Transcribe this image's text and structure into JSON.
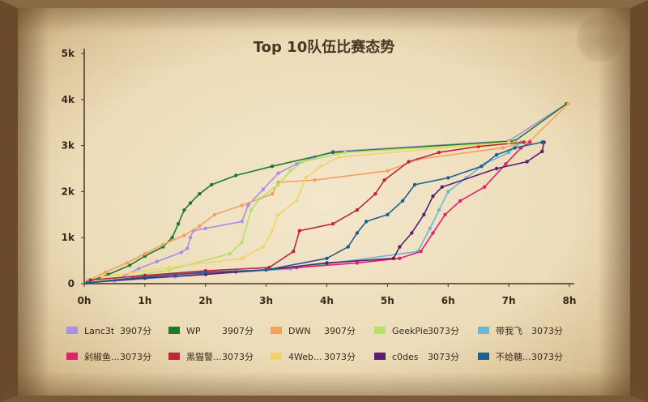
{
  "chart_data": {
    "type": "line",
    "title": "Top 10队伍比赛态势",
    "xlabel": "",
    "ylabel": "",
    "xlim": [
      0,
      8
    ],
    "ylim": [
      0,
      5000
    ],
    "x_ticks": [
      "0h",
      "1h",
      "2h",
      "3h",
      "4h",
      "5h",
      "6h",
      "7h",
      "8h"
    ],
    "y_ticks": [
      "0",
      "1k",
      "2k",
      "3k",
      "4k",
      "5k"
    ],
    "legend_position": "bottom",
    "series": [
      {
        "name": "Lanc3t",
        "score": "3907分",
        "color": "#a98ee8",
        "points": [
          [
            0.55,
            100
          ],
          [
            0.9,
            330
          ],
          [
            1.2,
            480
          ],
          [
            1.6,
            680
          ],
          [
            1.7,
            770
          ],
          [
            1.75,
            1000
          ],
          [
            1.8,
            1150
          ],
          [
            2.0,
            1200
          ],
          [
            2.6,
            1350
          ],
          [
            2.7,
            1700
          ],
          [
            2.95,
            2050
          ],
          [
            3.2,
            2400
          ],
          [
            3.5,
            2600
          ],
          [
            3.8,
            2750
          ],
          [
            4.1,
            2870
          ],
          [
            7.0,
            3100
          ],
          [
            7.95,
            3907
          ]
        ]
      },
      {
        "name": "WP",
        "score": "3907分",
        "color": "#1e7a2a",
        "points": [
          [
            0.05,
            30
          ],
          [
            0.4,
            200
          ],
          [
            0.75,
            400
          ],
          [
            1.0,
            600
          ],
          [
            1.3,
            800
          ],
          [
            1.45,
            1000
          ],
          [
            1.55,
            1300
          ],
          [
            1.65,
            1600
          ],
          [
            1.75,
            1750
          ],
          [
            1.9,
            1950
          ],
          [
            2.1,
            2150
          ],
          [
            2.5,
            2350
          ],
          [
            3.1,
            2550
          ],
          [
            4.1,
            2850
          ],
          [
            7.1,
            3100
          ],
          [
            7.95,
            3907
          ]
        ]
      },
      {
        "name": "DWN",
        "score": "3907分",
        "color": "#f3a25a",
        "points": [
          [
            0.05,
            60
          ],
          [
            0.35,
            250
          ],
          [
            0.7,
            450
          ],
          [
            1.0,
            650
          ],
          [
            1.3,
            850
          ],
          [
            1.65,
            1050
          ],
          [
            1.9,
            1250
          ],
          [
            2.15,
            1500
          ],
          [
            2.6,
            1700
          ],
          [
            3.1,
            1950
          ],
          [
            3.2,
            2200
          ],
          [
            3.8,
            2250
          ],
          [
            5.0,
            2450
          ],
          [
            5.5,
            2700
          ],
          [
            6.9,
            2950
          ],
          [
            7.35,
            3100
          ],
          [
            7.98,
            3907
          ]
        ]
      },
      {
        "name": "GeekPie",
        "score": "3073分",
        "color": "#b5e06a",
        "points": [
          [
            0.5,
            100
          ],
          [
            1.4,
            300
          ],
          [
            2.4,
            650
          ],
          [
            2.6,
            900
          ],
          [
            2.75,
            1600
          ],
          [
            2.9,
            1850
          ],
          [
            3.2,
            2150
          ],
          [
            3.4,
            2450
          ],
          [
            3.6,
            2650
          ],
          [
            4.3,
            2850
          ],
          [
            7.1,
            3073
          ]
        ]
      },
      {
        "name": "带我飞",
        "score": "3073分",
        "color": "#6bb7d4",
        "points": [
          [
            0.5,
            60
          ],
          [
            1.5,
            150
          ],
          [
            2.5,
            250
          ],
          [
            3.4,
            320
          ],
          [
            5.5,
            700
          ],
          [
            5.7,
            1200
          ],
          [
            5.85,
            1600
          ],
          [
            6.0,
            2000
          ],
          [
            6.3,
            2300
          ],
          [
            6.6,
            2600
          ],
          [
            7.0,
            2850
          ],
          [
            7.2,
            3073
          ]
        ]
      },
      {
        "name": "剁椒鱼...",
        "score": "3073分",
        "color": "#e0216b",
        "points": [
          [
            0.05,
            20
          ],
          [
            0.8,
            120
          ],
          [
            1.5,
            200
          ],
          [
            2.5,
            260
          ],
          [
            3.5,
            350
          ],
          [
            4.5,
            450
          ],
          [
            5.2,
            550
          ],
          [
            5.55,
            700
          ],
          [
            5.75,
            1100
          ],
          [
            5.95,
            1500
          ],
          [
            6.2,
            1800
          ],
          [
            6.6,
            2100
          ],
          [
            6.95,
            2600
          ],
          [
            7.2,
            2950
          ],
          [
            7.35,
            3073
          ]
        ]
      },
      {
        "name": "黑猫警...",
        "score": "3073分",
        "color": "#c2263a",
        "points": [
          [
            0.1,
            80
          ],
          [
            1.0,
            180
          ],
          [
            2.0,
            280
          ],
          [
            3.05,
            350
          ],
          [
            3.45,
            700
          ],
          [
            3.55,
            1150
          ],
          [
            4.1,
            1300
          ],
          [
            4.5,
            1600
          ],
          [
            4.8,
            1950
          ],
          [
            4.95,
            2250
          ],
          [
            5.35,
            2650
          ],
          [
            5.85,
            2850
          ],
          [
            6.5,
            2980
          ],
          [
            7.25,
            3073
          ]
        ]
      },
      {
        "name": "4Web...",
        "score": "3073分",
        "color": "#f2d36b",
        "points": [
          [
            0.3,
            150
          ],
          [
            1.4,
            350
          ],
          [
            2.6,
            550
          ],
          [
            2.95,
            800
          ],
          [
            3.1,
            1150
          ],
          [
            3.2,
            1500
          ],
          [
            3.5,
            1800
          ],
          [
            3.65,
            2300
          ],
          [
            3.9,
            2550
          ],
          [
            4.2,
            2750
          ],
          [
            7.0,
            3073
          ]
        ]
      },
      {
        "name": "c0des",
        "score": "3073分",
        "color": "#5a1f6e",
        "points": [
          [
            0.05,
            20
          ],
          [
            1.0,
            120
          ],
          [
            2.0,
            200
          ],
          [
            3.0,
            300
          ],
          [
            4.0,
            450
          ],
          [
            5.1,
            550
          ],
          [
            5.2,
            800
          ],
          [
            5.4,
            1100
          ],
          [
            5.6,
            1500
          ],
          [
            5.75,
            1900
          ],
          [
            5.9,
            2100
          ],
          [
            6.8,
            2500
          ],
          [
            7.3,
            2650
          ],
          [
            7.55,
            2873
          ],
          [
            7.58,
            3073
          ]
        ]
      },
      {
        "name": "不给糖...",
        "score": "3073分",
        "color": "#1f5f8e",
        "points": [
          [
            0.05,
            20
          ],
          [
            1.0,
            150
          ],
          [
            2.0,
            250
          ],
          [
            3.0,
            300
          ],
          [
            4.0,
            550
          ],
          [
            4.35,
            800
          ],
          [
            4.5,
            1100
          ],
          [
            4.65,
            1350
          ],
          [
            5.0,
            1500
          ],
          [
            5.25,
            1800
          ],
          [
            5.45,
            2150
          ],
          [
            6.0,
            2300
          ],
          [
            6.55,
            2550
          ],
          [
            6.8,
            2800
          ],
          [
            7.1,
            2950
          ],
          [
            7.55,
            3073
          ]
        ]
      }
    ]
  }
}
